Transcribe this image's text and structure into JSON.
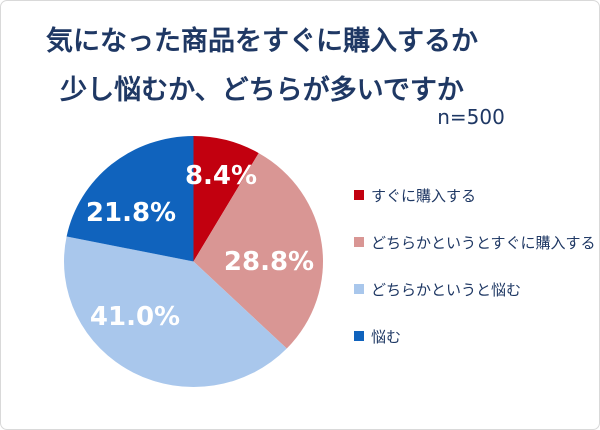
{
  "header": {
    "title_line1": "気になった商品をすぐに購入するか",
    "title_line2": "少し悩むか、どちらが多いですか",
    "sample_size": "n=500"
  },
  "chart_data": {
    "type": "pie",
    "title": "気になった商品をすぐに購入するか 少し悩むか、どちらが多いですか",
    "sample_size": "n=500",
    "categories": [
      "すぐに購入する",
      "どちらかというとすぐに購入する",
      "どちらかというと悩む",
      "悩む"
    ],
    "values": [
      8.4,
      28.8,
      41.0,
      21.8
    ],
    "data_labels": [
      "8.4%",
      "28.8%",
      "41.0%",
      "21.8%"
    ],
    "colors": [
      "#c2000f",
      "#d99694",
      "#a9c7ec",
      "#1063bd"
    ],
    "start_angle_deg": 0,
    "direction": "clockwise",
    "legend_position": "right",
    "data_label_color": "#ffffff",
    "total": 100
  },
  "colors": {
    "title_text": "#1f3864",
    "legend_text": "#1f3864",
    "background": "#ffffff",
    "card_border": "#d9d9d9"
  }
}
